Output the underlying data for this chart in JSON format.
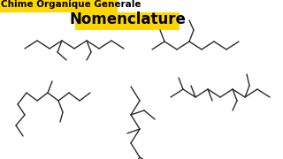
{
  "title1": "Chime Organique Generale",
  "title2": "Nomenclature",
  "title1_color": "#000000",
  "title2_color": "#000000",
  "title2_bg": "#FFD700",
  "title1_bg": "#FFD700",
  "bg_color": "#FFFFFF",
  "line_color": "#2a2a2a",
  "line_width": 1.0
}
